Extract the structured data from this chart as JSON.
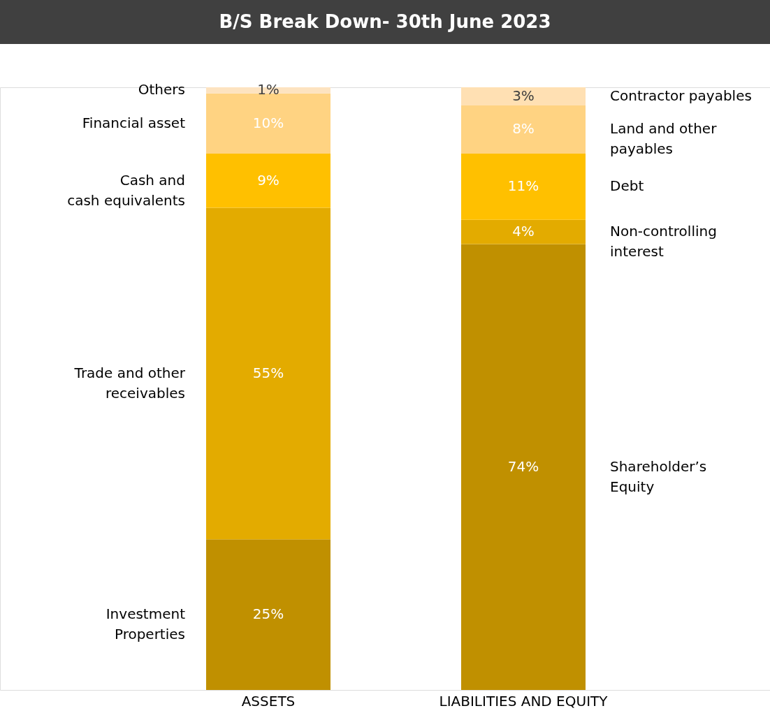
{
  "chart_data": {
    "type": "bar",
    "title": "B/S Break Down- 30th June 2023",
    "stacked": true,
    "legend": false,
    "grid": false,
    "categories": [
      "ASSETS",
      "LIABILITIES AND EQUITY"
    ],
    "series": [
      {
        "name": "Investment\nProperties",
        "color": "#c09000",
        "values": [
          25,
          null
        ],
        "value_labels": [
          "25%",
          null
        ]
      },
      {
        "name": "Trade and other\nreceivables",
        "color": "#e3ab00",
        "values": [
          55,
          null
        ],
        "value_labels": [
          "55%",
          null
        ]
      },
      {
        "name": "Cash and\ncash equivalents",
        "color": "#ffc000",
        "values": [
          9,
          null
        ],
        "value_labels": [
          "9%",
          null
        ]
      },
      {
        "name": "Financial asset",
        "color": "#ffd382",
        "values": [
          10,
          null
        ],
        "value_labels": [
          "10%",
          null
        ]
      },
      {
        "name": "Others",
        "color": "#fde3c0",
        "values": [
          1,
          null
        ],
        "value_labels": [
          "1%",
          null
        ]
      },
      {
        "name": "Shareholder’s\nEquity",
        "color": "#c09000",
        "values": [
          null,
          74
        ],
        "value_labels": [
          null,
          "74%"
        ]
      },
      {
        "name": "Non-controlling\ninterest",
        "color": "#e3ab00",
        "values": [
          null,
          4
        ],
        "value_labels": [
          null,
          "4%"
        ]
      },
      {
        "name": "Debt",
        "color": "#ffc000",
        "values": [
          null,
          11
        ],
        "value_labels": [
          null,
          "11%"
        ]
      },
      {
        "name": "Land and other\npayables",
        "color": "#ffd382",
        "values": [
          null,
          8
        ],
        "value_labels": [
          null,
          "8%"
        ]
      },
      {
        "name": "Contractor payables",
        "color": "#ffe0b3",
        "values": [
          null,
          3
        ],
        "value_labels": [
          null,
          "3%"
        ]
      }
    ]
  }
}
